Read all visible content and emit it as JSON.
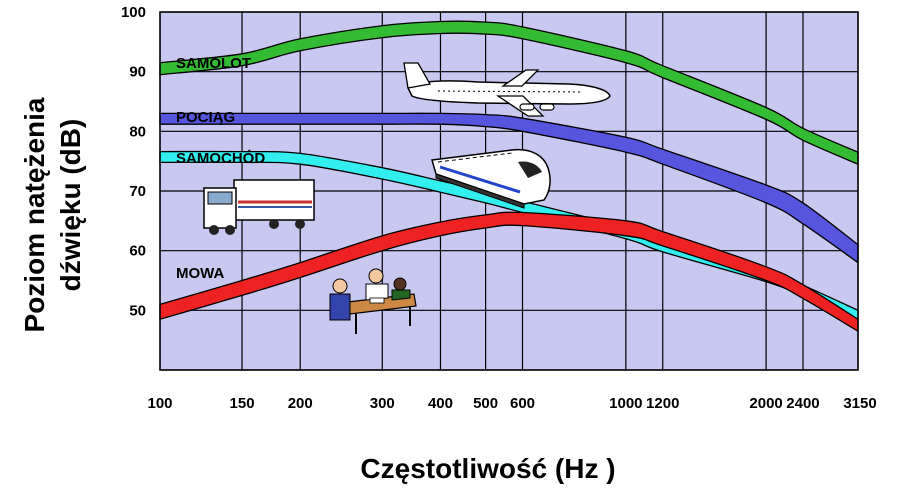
{
  "chart_data": {
    "type": "area",
    "xlabel": "Częstotliwość  (Hz )",
    "ylabel_lines": [
      "Poziom natężenia",
      "dźwięku  (dB)"
    ],
    "x_scale": "log",
    "x_ticks": [
      100,
      150,
      200,
      300,
      400,
      500,
      600,
      1000,
      1200,
      2000,
      2400,
      3150
    ],
    "x_tick_labels": [
      "100",
      "150",
      "200",
      "300",
      "400",
      "500",
      "600",
      "1000",
      "1200",
      "2000",
      "2400",
      "3150"
    ],
    "xlim": [
      100,
      3150
    ],
    "y_ticks": [
      50,
      60,
      70,
      80,
      90,
      100
    ],
    "y_tick_labels": [
      "50",
      "60",
      "70",
      "80",
      "90",
      "100"
    ],
    "ylim": [
      40,
      100
    ],
    "grid": true,
    "plot_background": "#c8c8f0",
    "series": [
      {
        "name": "SAMOLOT",
        "color": "#33bb33",
        "x": [
          100,
          150,
          200,
          300,
          400,
          500,
          600,
          1000,
          1200,
          2000,
          2400,
          3150
        ],
        "low": [
          89.5,
          91,
          93.5,
          95.7,
          96.4,
          96.3,
          95.5,
          91.5,
          89,
          82,
          78.5,
          74.5
        ],
        "high": [
          91.5,
          93,
          95.5,
          97.7,
          98.4,
          98.3,
          97.5,
          93.5,
          91,
          84,
          80.5,
          76.5
        ]
      },
      {
        "name": "POCIĄG",
        "color": "#5555dd",
        "x": [
          100,
          150,
          200,
          300,
          400,
          500,
          600,
          1000,
          1200,
          2000,
          2400,
          3150
        ],
        "low": [
          81.2,
          81.2,
          81.2,
          81.2,
          81.2,
          80.8,
          80,
          76.5,
          74.5,
          68,
          64.5,
          58
        ],
        "high": [
          83,
          83,
          83,
          83,
          83,
          82.8,
          82.2,
          79,
          77,
          71,
          68,
          61
        ]
      },
      {
        "name": "SAMOCHÓD",
        "color": "#33eeee",
        "x": [
          100,
          150,
          200,
          300,
          400,
          500,
          600,
          1000,
          1200,
          2000,
          2400,
          3150
        ],
        "low": [
          74.8,
          74.8,
          74.5,
          72,
          69.8,
          68,
          66.4,
          62,
          59.8,
          54.8,
          52.5,
          48.5
        ],
        "high": [
          76.6,
          76.6,
          76.3,
          73.9,
          71.7,
          70,
          68.3,
          63.9,
          61.6,
          56.5,
          54.2,
          50
        ]
      },
      {
        "name": "MOWA",
        "color": "#ee2222",
        "x": [
          100,
          150,
          200,
          300,
          400,
          500,
          600,
          1000,
          1200,
          2000,
          2400,
          3150
        ],
        "low": [
          48.5,
          52.5,
          55.5,
          60,
          62.5,
          63.8,
          64.2,
          62.5,
          60.8,
          55,
          52,
          46.5
        ],
        "high": [
          51,
          55,
          58,
          62.5,
          64.8,
          66,
          66.4,
          65,
          63.2,
          57.3,
          54.3,
          48.5
        ]
      }
    ]
  }
}
